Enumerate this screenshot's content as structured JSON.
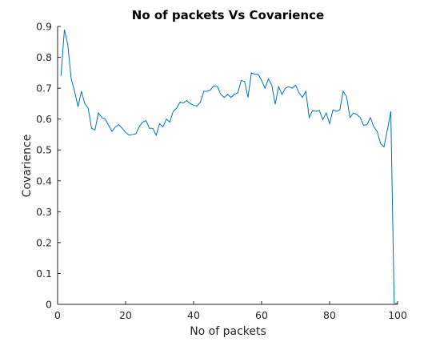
{
  "chart_data": {
    "type": "line",
    "title": "No of packets Vs Covarience",
    "xlabel": "No of packets",
    "ylabel": "Covarience",
    "xlim": [
      0,
      100
    ],
    "ylim": [
      0,
      0.9
    ],
    "xticks": [
      0,
      20,
      40,
      60,
      80,
      100
    ],
    "yticks": [
      0,
      0.1,
      0.2,
      0.3,
      0.4,
      0.5,
      0.6,
      0.7,
      0.8,
      0.9
    ],
    "xtick_labels": [
      "0",
      "20",
      "40",
      "60",
      "80",
      "100"
    ],
    "ytick_labels": [
      "0",
      "0.1",
      "0.2",
      "0.3",
      "0.4",
      "0.5",
      "0.6",
      "0.7",
      "0.8",
      "0.9"
    ],
    "grid": false,
    "line_color": "#0072BD",
    "series": [
      {
        "x": [
          1,
          2,
          3,
          4,
          5,
          6,
          7,
          8,
          9,
          10,
          11,
          12,
          13,
          14,
          15,
          16,
          17,
          18,
          19,
          20,
          21,
          22,
          23,
          24,
          25,
          26,
          27,
          28,
          29,
          30,
          31,
          32,
          33,
          34,
          35,
          36,
          37,
          38,
          39,
          40,
          41,
          42,
          43,
          44,
          45,
          46,
          47,
          48,
          49,
          50,
          51,
          52,
          53,
          54,
          55,
          56,
          57,
          58,
          59,
          60,
          61,
          62,
          63,
          64,
          65,
          66,
          67,
          68,
          69,
          70,
          71,
          72,
          73,
          74,
          75,
          76,
          77,
          78,
          79,
          80,
          81,
          82,
          83,
          84,
          85,
          86,
          87,
          88,
          89,
          90,
          91,
          92,
          93,
          94,
          95,
          96,
          97,
          98,
          99,
          100
        ],
        "values": [
          0.74,
          0.89,
          0.84,
          0.73,
          0.69,
          0.64,
          0.69,
          0.65,
          0.635,
          0.57,
          0.565,
          0.62,
          0.605,
          0.6,
          0.58,
          0.56,
          0.575,
          0.582,
          0.57,
          0.557,
          0.548,
          0.55,
          0.552,
          0.575,
          0.59,
          0.595,
          0.57,
          0.57,
          0.548,
          0.585,
          0.575,
          0.6,
          0.59,
          0.625,
          0.635,
          0.655,
          0.652,
          0.66,
          0.65,
          0.645,
          0.642,
          0.655,
          0.69,
          0.69,
          0.695,
          0.708,
          0.705,
          0.68,
          0.67,
          0.68,
          0.67,
          0.68,
          0.685,
          0.725,
          0.722,
          0.67,
          0.75,
          0.745,
          0.745,
          0.725,
          0.7,
          0.73,
          0.71,
          0.648,
          0.705,
          0.68,
          0.7,
          0.705,
          0.7,
          0.71,
          0.685,
          0.67,
          0.69,
          0.605,
          0.628,
          0.625,
          0.628,
          0.598,
          0.62,
          0.585,
          0.63,
          0.625,
          0.63,
          0.69,
          0.672,
          0.605,
          0.62,
          0.615,
          0.605,
          0.58,
          0.582,
          0.605,
          0.575,
          0.56,
          0.52,
          0.51,
          0.565,
          0.625,
          0.0,
          0.005
        ]
      }
    ]
  }
}
